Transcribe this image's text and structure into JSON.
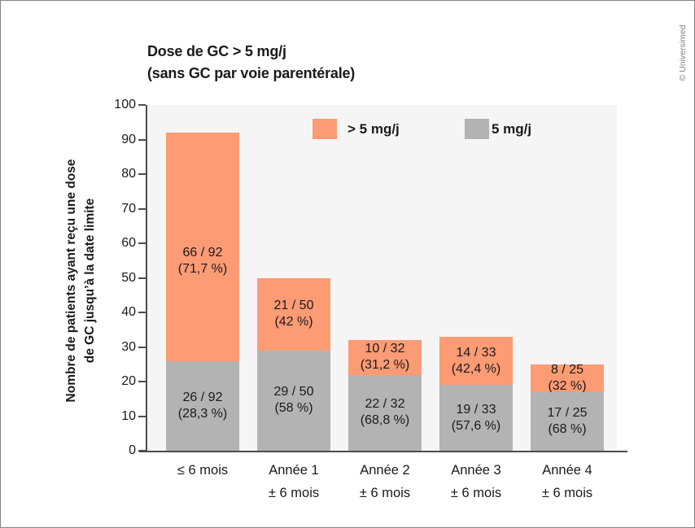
{
  "credit": "© Universimed",
  "title": {
    "line1": "Dose de GC > 5 mg/j",
    "line2": "(sans GC par voie parentérale)"
  },
  "y_axis": {
    "title_line1": "Nombre de patients ayant reçu une dose",
    "title_line2": "de GC jusqu’à la date limite"
  },
  "legend": [
    {
      "label": "> 5 mg/j",
      "color": "#FC9B74"
    },
    {
      "label": "5 mg/j",
      "color": "#B3B3B3"
    }
  ],
  "chart_data": {
    "type": "bar",
    "stacked": true,
    "title": "Dose de GC > 5 mg/j (sans GC par voie parentérale)",
    "ylabel": "Nombre de patients ayant reçu une dose de GC jusqu’à la date limite",
    "xlabel": "",
    "ylim": [
      0,
      100
    ],
    "yticks": [
      0,
      10,
      20,
      30,
      40,
      50,
      60,
      70,
      80,
      90,
      100
    ],
    "grid": false,
    "legend_position": "top-inside",
    "plot_background": "#f5f5f5",
    "categories": [
      "≤ 6 mois",
      "Année 1 ± 6 mois",
      "Année 2 ± 6 mois",
      "Année 3 ± 6 mois",
      "Année 4 ± 6 mois"
    ],
    "category_lines": [
      [
        "≤ 6 mois"
      ],
      [
        "Année 1",
        "± 6 mois"
      ],
      [
        "Année 2",
        "± 6 mois"
      ],
      [
        "Année 3",
        "± 6 mois"
      ],
      [
        "Année 4",
        "± 6 mois"
      ]
    ],
    "totals": [
      92,
      50,
      32,
      33,
      25
    ],
    "series": [
      {
        "name": "> 5 mg/j",
        "color": "#FC9B74",
        "values": [
          66,
          21,
          10,
          14,
          8
        ],
        "bar_labels": [
          [
            "66 / 92",
            "(71,7 %)"
          ],
          [
            "21 / 50",
            "(42 %)"
          ],
          [
            "10 / 32",
            "(31,2 %)"
          ],
          [
            "14 / 33",
            "(42,4 %)"
          ],
          [
            "8 / 25",
            "(32 %)"
          ]
        ]
      },
      {
        "name": "5 mg/j",
        "color": "#B3B3B3",
        "values": [
          26,
          29,
          22,
          19,
          17
        ],
        "bar_labels": [
          [
            "26 / 92",
            "(28,3 %)"
          ],
          [
            "29 / 50",
            "(58 %)"
          ],
          [
            "22 / 32",
            "(68,8 %)"
          ],
          [
            "19 / 33",
            "(57,6 %)"
          ],
          [
            "17 / 25",
            "(68 %)"
          ]
        ]
      }
    ]
  }
}
